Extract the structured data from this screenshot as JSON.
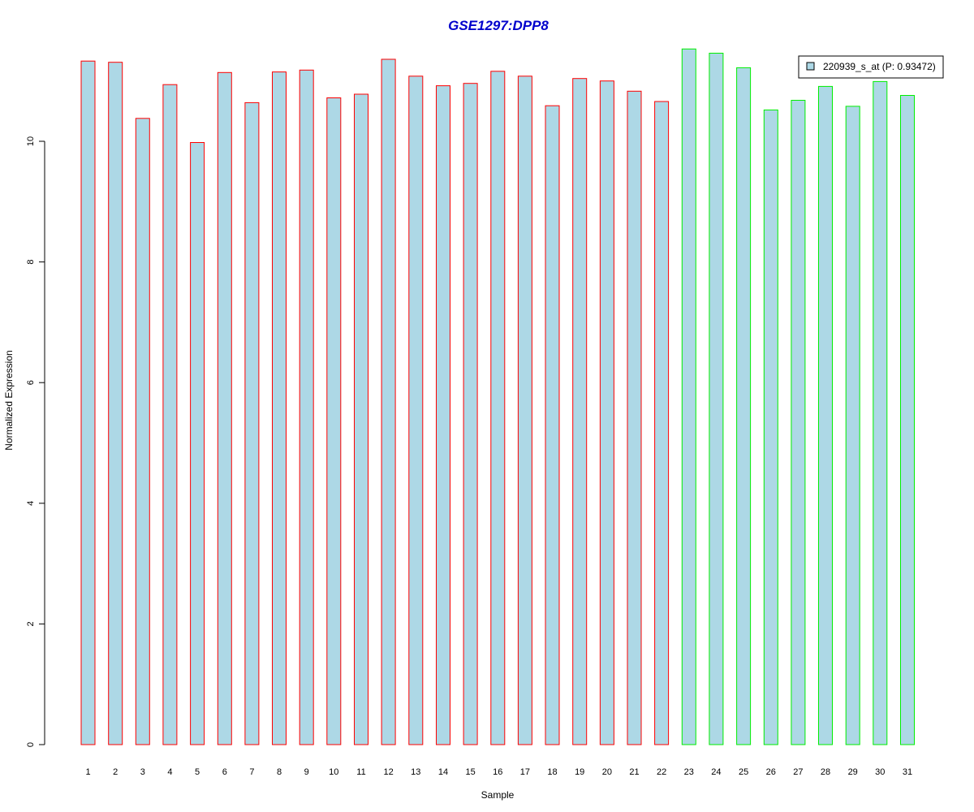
{
  "colors": {
    "title": "#0000cc",
    "bar_fill": "#add8e6",
    "group1_border": "#ff0000",
    "group2_border": "#00ee00",
    "axis": "#000000"
  },
  "chart_data": {
    "type": "bar",
    "title": "GSE1297:DPP8",
    "xlabel": "Sample",
    "ylabel": "Normalized Expression",
    "ylim": [
      0,
      11.8
    ],
    "yticks": [
      0,
      2,
      4,
      6,
      8,
      10
    ],
    "grid": false,
    "legend_position": "top-right",
    "categories": [
      "1",
      "2",
      "3",
      "4",
      "5",
      "6",
      "7",
      "8",
      "9",
      "10",
      "11",
      "12",
      "13",
      "14",
      "15",
      "16",
      "17",
      "18",
      "19",
      "20",
      "21",
      "22",
      "23",
      "24",
      "25",
      "26",
      "27",
      "28",
      "29",
      "30",
      "31"
    ],
    "series": [
      {
        "name": "220939_s_at (P: 0.93472)",
        "values": [
          11.33,
          11.31,
          10.38,
          10.94,
          9.98,
          11.14,
          10.64,
          11.15,
          11.18,
          10.72,
          10.78,
          11.36,
          11.08,
          10.92,
          10.96,
          11.16,
          11.08,
          10.59,
          11.04,
          11.0,
          10.83,
          10.66,
          11.53,
          11.46,
          11.22,
          10.52,
          10.68,
          10.91,
          10.58,
          10.99,
          10.76
        ]
      }
    ],
    "groups": [
      {
        "from": 1,
        "to": 22,
        "border_color": "#ff0000"
      },
      {
        "from": 23,
        "to": 31,
        "border_color": "#00ee00"
      }
    ]
  }
}
